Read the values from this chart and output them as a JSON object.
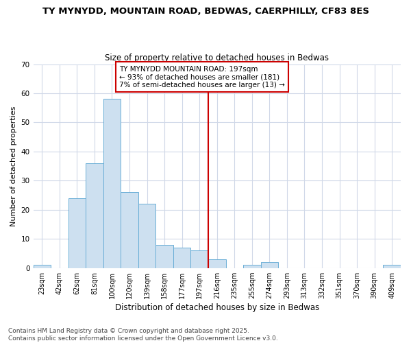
{
  "title": "TY MYNYDD, MOUNTAIN ROAD, BEDWAS, CAERPHILLY, CF83 8ES",
  "subtitle": "Size of property relative to detached houses in Bedwas",
  "xlabel": "Distribution of detached houses by size in Bedwas",
  "ylabel": "Number of detached properties",
  "footnote": "Contains HM Land Registry data © Crown copyright and database right 2025.\nContains public sector information licensed under the Open Government Licence v3.0.",
  "bin_labels": [
    "23sqm",
    "42sqm",
    "62sqm",
    "81sqm",
    "100sqm",
    "120sqm",
    "139sqm",
    "158sqm",
    "177sqm",
    "197sqm",
    "216sqm",
    "235sqm",
    "255sqm",
    "274sqm",
    "293sqm",
    "313sqm",
    "332sqm",
    "351sqm",
    "370sqm",
    "390sqm",
    "409sqm"
  ],
  "bin_values": [
    1,
    0,
    24,
    36,
    58,
    26,
    22,
    8,
    7,
    6,
    3,
    0,
    1,
    2,
    0,
    0,
    0,
    0,
    0,
    0,
    1
  ],
  "marker_index": 9,
  "annotation_lines": [
    "TY MYNYDD MOUNTAIN ROAD: 197sqm",
    "← 93% of detached houses are smaller (181)",
    "7% of semi-detached houses are larger (13) →"
  ],
  "bar_color": "#cde0f0",
  "bar_edge_color": "#6aaed6",
  "marker_color": "#cc0000",
  "bg_color": "#ffffff",
  "grid_color": "#d0d8e8",
  "ylim": [
    0,
    70
  ],
  "yticks": [
    0,
    10,
    20,
    30,
    40,
    50,
    60,
    70
  ],
  "title_fontsize": 9.5,
  "subtitle_fontsize": 8.5,
  "axis_label_fontsize": 8,
  "tick_fontsize": 7,
  "annot_fontsize": 7.5,
  "footnote_fontsize": 6.5
}
